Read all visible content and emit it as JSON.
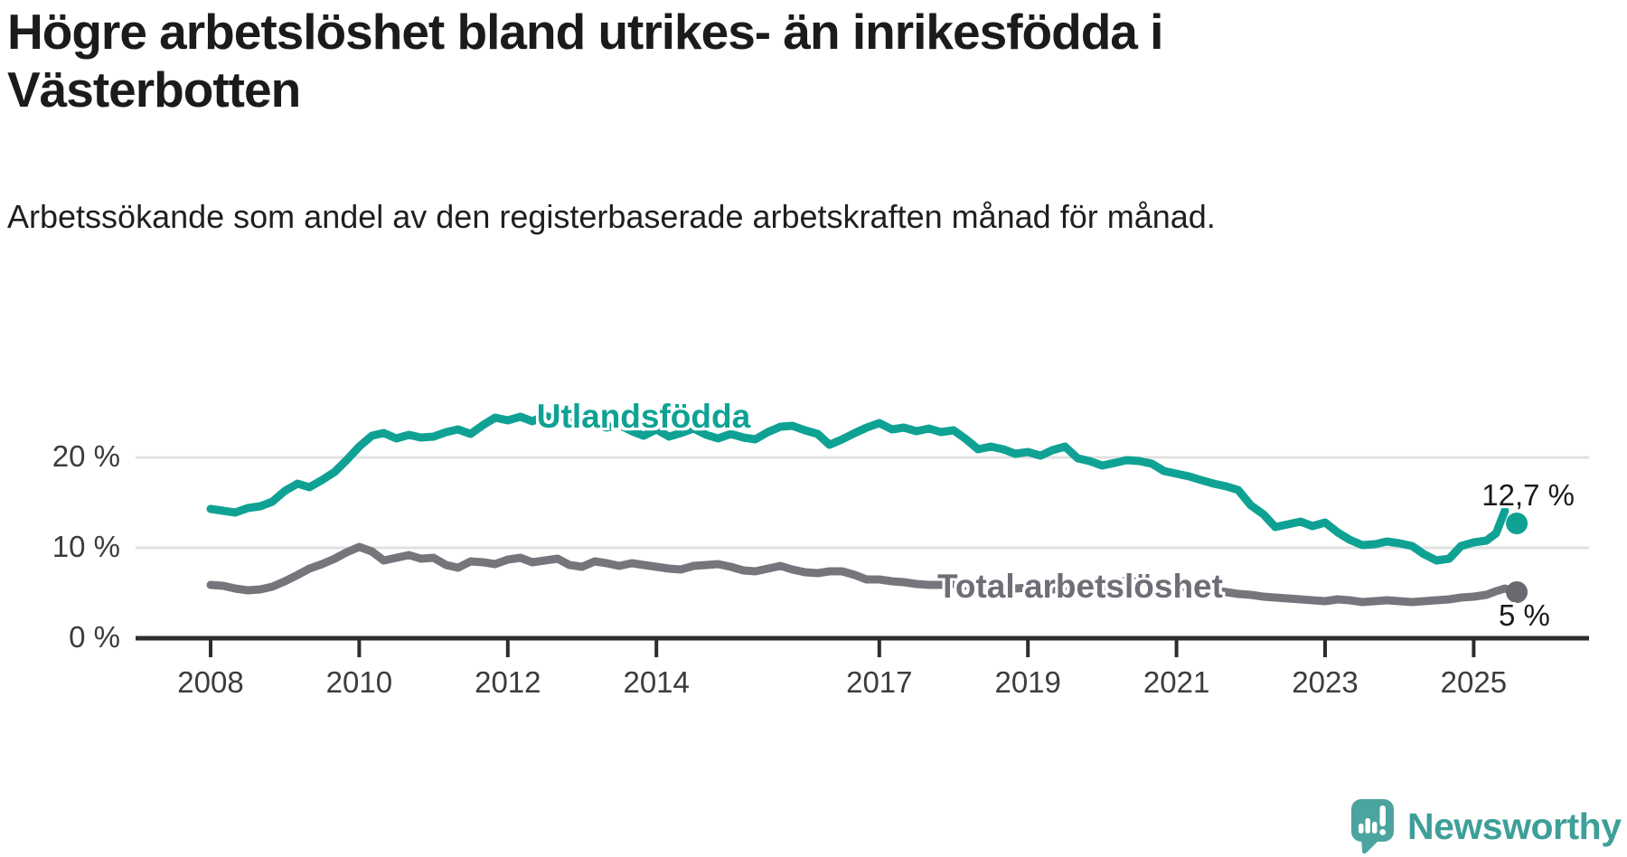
{
  "title": "Högre arbetslöshet bland utrikes- än inrikesfödda i Västerbotten",
  "subtitle": "Arbetssökande som andel av den registerbaserade arbetskraften månad för månad.",
  "branding": {
    "logo_text": "Newsworthy",
    "logo_icon": "speech-bubble-with-bar-chart-and-exclamation",
    "logo_bubble_color": "#4BA49F",
    "logo_text_color": "#3E9F99"
  },
  "colors": {
    "foreign_born_line": "#0FA294",
    "total_line": "#77757C",
    "total_label": "#6F6D75",
    "value_label": "#1A1A1A",
    "axis": "#2D2D2D",
    "gridline": "#E1E1E1",
    "axis_text": "#3C3C3C"
  },
  "chart_data": {
    "type": "line",
    "title": "Högre arbetslöshet bland utrikes- än inrikesfödda i Västerbotten",
    "subtitle": "Arbetssökande som andel av den registerbaserade arbetskraften månad för månad.",
    "unit": "%",
    "grid": "horizontal-only",
    "legend_position": "inline-labels-on-lines",
    "x_axis": {
      "ticks": [
        2008,
        2010,
        2012,
        2014,
        2017,
        2019,
        2021,
        2023,
        2025
      ],
      "range": [
        2007.1,
        2026.1
      ]
    },
    "y_axis": {
      "tick_values": [
        0,
        10,
        20
      ],
      "tick_labels": [
        "0 %",
        "10 %",
        "20 %"
      ],
      "range": [
        0,
        27
      ]
    },
    "series": [
      {
        "name": "Utlandsfödda",
        "color": "#0FA294",
        "end_label": "12,7 %",
        "end_value": 12.7,
        "points": [
          [
            2008.0,
            14.3
          ],
          [
            2008.17,
            14.1
          ],
          [
            2008.33,
            13.9
          ],
          [
            2008.5,
            14.4
          ],
          [
            2008.67,
            14.6
          ],
          [
            2008.83,
            15.1
          ],
          [
            2009.0,
            16.3
          ],
          [
            2009.17,
            17.1
          ],
          [
            2009.33,
            16.7
          ],
          [
            2009.5,
            17.5
          ],
          [
            2009.67,
            18.4
          ],
          [
            2009.83,
            19.7
          ],
          [
            2010.0,
            21.2
          ],
          [
            2010.17,
            22.4
          ],
          [
            2010.33,
            22.7
          ],
          [
            2010.5,
            22.1
          ],
          [
            2010.67,
            22.5
          ],
          [
            2010.83,
            22.2
          ],
          [
            2011.0,
            22.3
          ],
          [
            2011.17,
            22.8
          ],
          [
            2011.33,
            23.1
          ],
          [
            2011.5,
            22.6
          ],
          [
            2011.67,
            23.6
          ],
          [
            2011.83,
            24.4
          ],
          [
            2012.0,
            24.1
          ],
          [
            2012.17,
            24.5
          ],
          [
            2012.33,
            24.0
          ],
          [
            2012.5,
            24.6
          ],
          [
            2012.67,
            24.2
          ],
          [
            2012.83,
            23.8
          ],
          [
            2013.0,
            24.3
          ],
          [
            2013.17,
            23.7
          ],
          [
            2013.33,
            23.3
          ],
          [
            2013.5,
            23.6
          ],
          [
            2013.67,
            22.9
          ],
          [
            2013.83,
            22.4
          ],
          [
            2014.0,
            23.1
          ],
          [
            2014.17,
            22.3
          ],
          [
            2014.33,
            22.7
          ],
          [
            2014.5,
            23.2
          ],
          [
            2014.67,
            22.5
          ],
          [
            2014.83,
            22.1
          ],
          [
            2015.0,
            22.6
          ],
          [
            2015.17,
            22.2
          ],
          [
            2015.33,
            22.0
          ],
          [
            2015.5,
            22.8
          ],
          [
            2015.67,
            23.4
          ],
          [
            2015.83,
            23.5
          ],
          [
            2016.0,
            23.0
          ],
          [
            2016.17,
            22.6
          ],
          [
            2016.33,
            21.4
          ],
          [
            2016.5,
            22.0
          ],
          [
            2016.67,
            22.7
          ],
          [
            2016.83,
            23.3
          ],
          [
            2017.0,
            23.8
          ],
          [
            2017.17,
            23.1
          ],
          [
            2017.33,
            23.3
          ],
          [
            2017.5,
            22.9
          ],
          [
            2017.67,
            23.2
          ],
          [
            2017.83,
            22.8
          ],
          [
            2018.0,
            23.0
          ],
          [
            2018.17,
            22.0
          ],
          [
            2018.33,
            20.9
          ],
          [
            2018.5,
            21.2
          ],
          [
            2018.67,
            20.9
          ],
          [
            2018.83,
            20.4
          ],
          [
            2019.0,
            20.6
          ],
          [
            2019.17,
            20.2
          ],
          [
            2019.33,
            20.8
          ],
          [
            2019.5,
            21.2
          ],
          [
            2019.67,
            19.9
          ],
          [
            2019.83,
            19.6
          ],
          [
            2020.0,
            19.1
          ],
          [
            2020.17,
            19.4
          ],
          [
            2020.33,
            19.7
          ],
          [
            2020.5,
            19.6
          ],
          [
            2020.67,
            19.3
          ],
          [
            2020.83,
            18.5
          ],
          [
            2021.0,
            18.2
          ],
          [
            2021.17,
            17.9
          ],
          [
            2021.33,
            17.5
          ],
          [
            2021.5,
            17.1
          ],
          [
            2021.67,
            16.8
          ],
          [
            2021.83,
            16.4
          ],
          [
            2022.0,
            14.7
          ],
          [
            2022.17,
            13.7
          ],
          [
            2022.33,
            12.3
          ],
          [
            2022.5,
            12.6
          ],
          [
            2022.67,
            12.9
          ],
          [
            2022.83,
            12.4
          ],
          [
            2023.0,
            12.8
          ],
          [
            2023.17,
            11.7
          ],
          [
            2023.33,
            10.9
          ],
          [
            2023.5,
            10.3
          ],
          [
            2023.67,
            10.4
          ],
          [
            2023.83,
            10.7
          ],
          [
            2024.0,
            10.5
          ],
          [
            2024.17,
            10.2
          ],
          [
            2024.33,
            9.3
          ],
          [
            2024.5,
            8.6
          ],
          [
            2024.67,
            8.8
          ],
          [
            2024.83,
            10.2
          ],
          [
            2025.0,
            10.6
          ],
          [
            2025.17,
            10.8
          ],
          [
            2025.3,
            11.6
          ],
          [
            2025.42,
            14.1
          ]
        ],
        "end_point": [
          2025.58,
          12.7
        ]
      },
      {
        "name": "Total arbetslöshet",
        "color": "#77757C",
        "end_label": "5 %",
        "end_value": 5.0,
        "points": [
          [
            2008.0,
            5.9
          ],
          [
            2008.17,
            5.8
          ],
          [
            2008.33,
            5.5
          ],
          [
            2008.5,
            5.3
          ],
          [
            2008.67,
            5.4
          ],
          [
            2008.83,
            5.7
          ],
          [
            2009.0,
            6.3
          ],
          [
            2009.17,
            7.0
          ],
          [
            2009.33,
            7.7
          ],
          [
            2009.5,
            8.2
          ],
          [
            2009.67,
            8.8
          ],
          [
            2009.83,
            9.5
          ],
          [
            2010.0,
            10.1
          ],
          [
            2010.17,
            9.6
          ],
          [
            2010.33,
            8.6
          ],
          [
            2010.5,
            8.9
          ],
          [
            2010.67,
            9.2
          ],
          [
            2010.83,
            8.8
          ],
          [
            2011.0,
            8.9
          ],
          [
            2011.17,
            8.1
          ],
          [
            2011.33,
            7.8
          ],
          [
            2011.5,
            8.5
          ],
          [
            2011.67,
            8.4
          ],
          [
            2011.83,
            8.2
          ],
          [
            2012.0,
            8.7
          ],
          [
            2012.17,
            8.9
          ],
          [
            2012.33,
            8.4
          ],
          [
            2012.5,
            8.6
          ],
          [
            2012.67,
            8.8
          ],
          [
            2012.83,
            8.1
          ],
          [
            2013.0,
            7.9
          ],
          [
            2013.17,
            8.5
          ],
          [
            2013.33,
            8.3
          ],
          [
            2013.5,
            8.0
          ],
          [
            2013.67,
            8.3
          ],
          [
            2013.83,
            8.1
          ],
          [
            2014.0,
            7.9
          ],
          [
            2014.17,
            7.7
          ],
          [
            2014.33,
            7.6
          ],
          [
            2014.5,
            8.0
          ],
          [
            2014.67,
            8.1
          ],
          [
            2014.83,
            8.2
          ],
          [
            2015.0,
            7.9
          ],
          [
            2015.17,
            7.5
          ],
          [
            2015.33,
            7.4
          ],
          [
            2015.5,
            7.7
          ],
          [
            2015.67,
            8.0
          ],
          [
            2015.83,
            7.6
          ],
          [
            2016.0,
            7.3
          ],
          [
            2016.17,
            7.2
          ],
          [
            2016.33,
            7.4
          ],
          [
            2016.5,
            7.4
          ],
          [
            2016.67,
            7.0
          ],
          [
            2016.83,
            6.5
          ],
          [
            2017.0,
            6.5
          ],
          [
            2017.17,
            6.3
          ],
          [
            2017.33,
            6.2
          ],
          [
            2017.5,
            6.0
          ],
          [
            2017.67,
            5.9
          ],
          [
            2017.83,
            5.9
          ],
          [
            2018.0,
            6.0
          ],
          [
            2018.17,
            5.8
          ],
          [
            2018.33,
            5.6
          ],
          [
            2018.5,
            5.6
          ],
          [
            2018.67,
            5.5
          ],
          [
            2018.83,
            5.5
          ],
          [
            2019.0,
            5.6
          ],
          [
            2019.17,
            5.5
          ],
          [
            2019.33,
            5.4
          ],
          [
            2019.5,
            5.4
          ],
          [
            2019.67,
            5.3
          ],
          [
            2019.83,
            5.2
          ],
          [
            2020.0,
            5.5
          ],
          [
            2020.17,
            6.0
          ],
          [
            2020.33,
            6.4
          ],
          [
            2020.5,
            6.2
          ],
          [
            2020.67,
            6.0
          ],
          [
            2020.83,
            5.9
          ],
          [
            2021.0,
            5.8
          ],
          [
            2021.17,
            5.6
          ],
          [
            2021.33,
            5.4
          ],
          [
            2021.5,
            5.3
          ],
          [
            2021.67,
            5.1
          ],
          [
            2021.83,
            4.9
          ],
          [
            2022.0,
            4.8
          ],
          [
            2022.17,
            4.6
          ],
          [
            2022.33,
            4.5
          ],
          [
            2022.5,
            4.4
          ],
          [
            2022.67,
            4.3
          ],
          [
            2022.83,
            4.2
          ],
          [
            2023.0,
            4.1
          ],
          [
            2023.17,
            4.3
          ],
          [
            2023.33,
            4.2
          ],
          [
            2023.5,
            4.0
          ],
          [
            2023.67,
            4.1
          ],
          [
            2023.83,
            4.2
          ],
          [
            2024.0,
            4.1
          ],
          [
            2024.17,
            4.0
          ],
          [
            2024.33,
            4.1
          ],
          [
            2024.5,
            4.2
          ],
          [
            2024.67,
            4.3
          ],
          [
            2024.83,
            4.5
          ],
          [
            2025.0,
            4.6
          ],
          [
            2025.17,
            4.8
          ],
          [
            2025.3,
            5.2
          ],
          [
            2025.42,
            5.5
          ],
          [
            2025.58,
            5.1
          ]
        ],
        "end_point": [
          2025.58,
          5.1
        ]
      }
    ]
  }
}
